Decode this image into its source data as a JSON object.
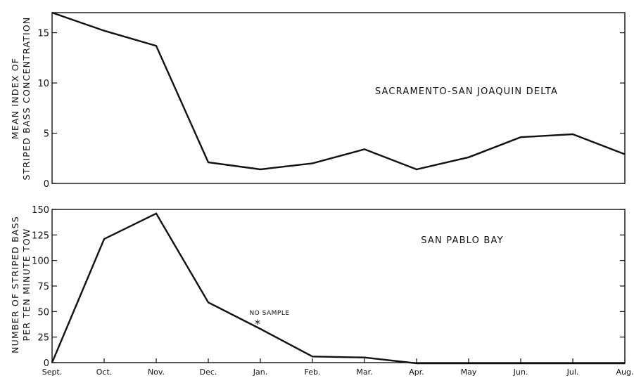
{
  "chart_data": [
    {
      "type": "line",
      "panel": "top",
      "title": "SACRAMENTO-SAN JOAQUIN DELTA",
      "ylabel_line1": "MEAN INDEX OF",
      "ylabel_line2": "STRIPED BASS CONCENTRATION",
      "xlabel": "",
      "categories": [
        "Sept.",
        "Oct.",
        "Nov.",
        "Dec.",
        "Jan.",
        "Feb.",
        "Mar.",
        "Apr.",
        "May",
        "Jun.",
        "Jul.",
        "Aug."
      ],
      "values": [
        17.1,
        15.2,
        13.7,
        2.1,
        1.4,
        2.0,
        3.4,
        1.4,
        2.6,
        4.6,
        4.9,
        2.9
      ],
      "ylim": [
        0,
        17
      ],
      "yticks": [
        "0",
        "5",
        "10",
        "15"
      ],
      "grid": false
    },
    {
      "type": "line",
      "panel": "bottom",
      "title": "SAN PABLO BAY",
      "ylabel_line1": "NUMBER OF STRIPED BASS",
      "ylabel_line2": "PER TEN MINUTE TOW",
      "xlabel": "",
      "categories": [
        "Sept.",
        "Oct.",
        "Nov.",
        "Dec.",
        "Jan.",
        "Feb.",
        "Mar.",
        "Apr.",
        "May",
        "Jun.",
        "Jul.",
        "Aug."
      ],
      "values": [
        0,
        121,
        146,
        59,
        33,
        6,
        5,
        -1,
        -2,
        -2,
        -2,
        -2
      ],
      "ylim": [
        0,
        150
      ],
      "yticks": [
        "0",
        "25",
        "50",
        "75",
        "100",
        "125",
        "150"
      ],
      "annotation": {
        "text": "NO SAMPLE",
        "marker": "*",
        "category": "Jan.",
        "value": 38
      },
      "grid": false
    }
  ]
}
